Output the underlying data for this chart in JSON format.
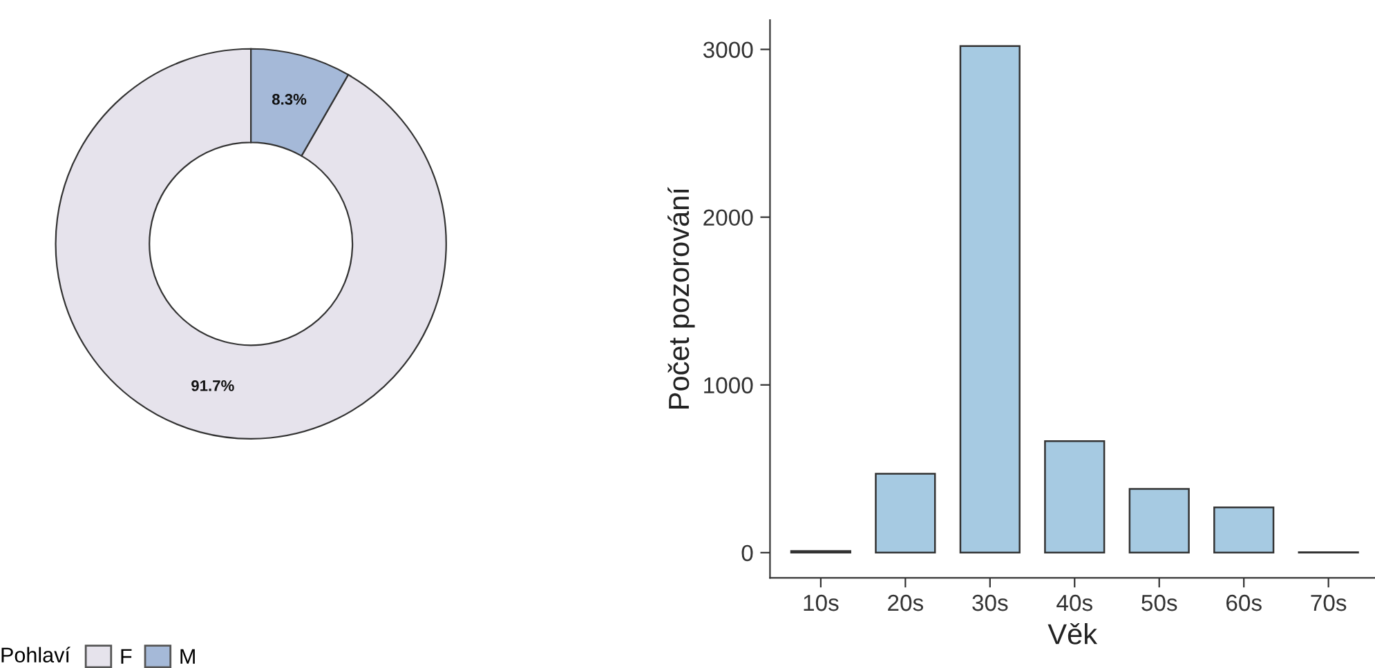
{
  "chart_data": [
    {
      "type": "donut",
      "categories": [
        "F",
        "M"
      ],
      "values": [
        91.7,
        8.3
      ],
      "colors": [
        "#e6e3ec",
        "#a5b9d8"
      ],
      "value_labels": [
        "91.7%",
        "8.3%"
      ],
      "legend_title": "Pohlaví",
      "legend": "bottom"
    },
    {
      "type": "bar",
      "categories": [
        "10s",
        "20s",
        "30s",
        "40s",
        "50s",
        "60s",
        "70s"
      ],
      "values": [
        10,
        470,
        3020,
        665,
        380,
        270,
        3
      ],
      "color": "#a6cae2",
      "xlabel": "Věk",
      "ylabel": "Počet pozorování",
      "ylim": [
        -150,
        3175
      ],
      "yticks": [
        0,
        1000,
        2000,
        3000
      ],
      "grid": false,
      "legend": false
    }
  ]
}
